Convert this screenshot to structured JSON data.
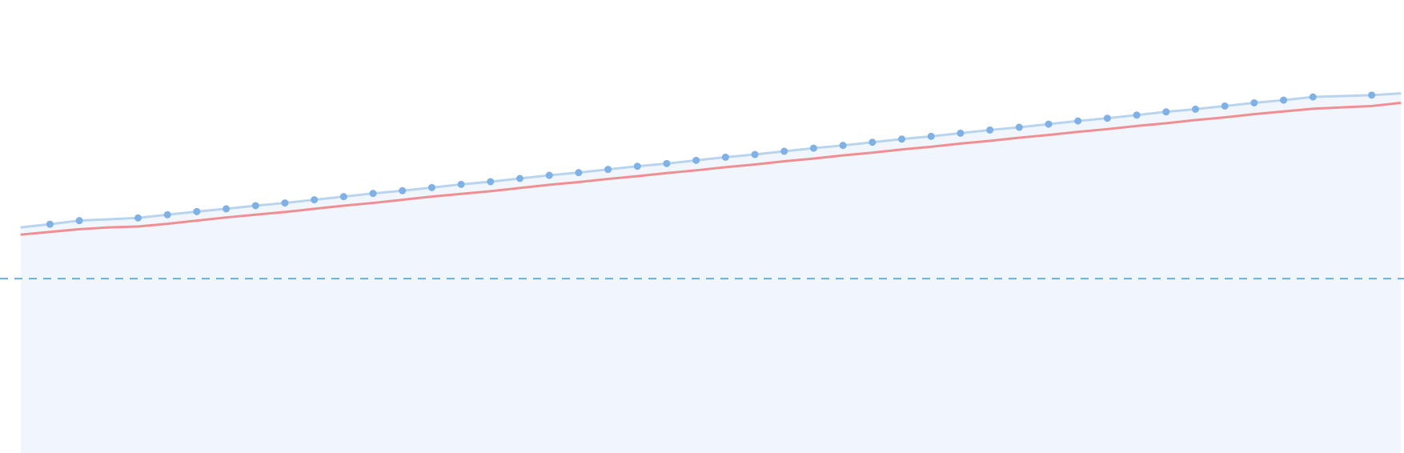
{
  "chart_data": {
    "type": "line",
    "title": "",
    "xlabel": "",
    "ylabel": "",
    "grid": false,
    "legend": "none",
    "x": [
      -1,
      0,
      1,
      2,
      3,
      4,
      5,
      6,
      7,
      8,
      9,
      10,
      11,
      12,
      13,
      14,
      15,
      16,
      17,
      18,
      19,
      20,
      21,
      22,
      23,
      24,
      25,
      26,
      27,
      28,
      29,
      30,
      31,
      32,
      33,
      34,
      35,
      36,
      37,
      38,
      39,
      40,
      41,
      42,
      43,
      44,
      45,
      46
    ],
    "xlim": [
      -1.7,
      46.1
    ],
    "ylim": [
      0,
      100
    ],
    "series": [
      {
        "color": "#b8d4ef",
        "marker_color": "#7fb0e6",
        "fill_color": "#f0f6fc",
        "values": [
          49.8,
          50.5,
          51.3,
          51.6,
          51.9,
          52.6,
          53.3,
          53.9,
          54.6,
          55.2,
          55.9,
          56.6,
          57.3,
          57.9,
          58.6,
          59.3,
          59.9,
          60.6,
          61.3,
          61.9,
          62.6,
          63.3,
          63.9,
          64.6,
          65.3,
          65.9,
          66.6,
          67.3,
          67.9,
          68.6,
          69.3,
          69.9,
          70.6,
          71.3,
          71.9,
          72.6,
          73.3,
          73.9,
          74.6,
          75.3,
          75.9,
          76.6,
          77.3,
          77.9,
          78.6,
          78.8,
          79.0,
          79.4
        ],
        "markers": [
          false,
          true,
          true,
          false,
          true,
          true,
          true,
          true,
          true,
          true,
          true,
          true,
          true,
          true,
          true,
          true,
          true,
          true,
          true,
          true,
          true,
          true,
          true,
          true,
          true,
          true,
          true,
          true,
          true,
          true,
          true,
          true,
          true,
          true,
          true,
          true,
          true,
          true,
          true,
          true,
          true,
          true,
          true,
          true,
          true,
          false,
          true,
          false
        ]
      },
      {
        "color": "#f08f93",
        "values": [
          48.2,
          48.8,
          49.4,
          49.8,
          50.0,
          50.6,
          51.3,
          52.0,
          52.6,
          53.2,
          53.9,
          54.6,
          55.2,
          55.9,
          56.6,
          57.2,
          57.8,
          58.5,
          59.2,
          59.8,
          60.5,
          61.1,
          61.8,
          62.4,
          63.1,
          63.7,
          64.4,
          65.0,
          65.7,
          66.3,
          67.0,
          67.6,
          68.3,
          68.9,
          69.6,
          70.2,
          70.9,
          71.5,
          72.2,
          72.8,
          73.5,
          74.1,
          74.8,
          75.4,
          76.0,
          76.3,
          76.6,
          77.3
        ]
      }
    ],
    "reference_line": {
      "y": 38.5,
      "color": "#6aaee0",
      "style": "dashed"
    }
  }
}
